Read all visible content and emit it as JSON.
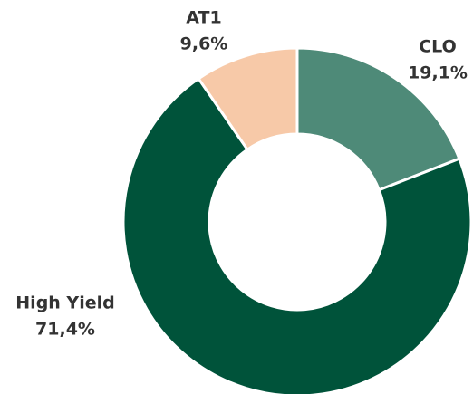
{
  "chart_data": {
    "type": "donut",
    "categories": [
      "CLO",
      "High Yield",
      "AT1"
    ],
    "values": [
      19.1,
      71.4,
      9.6
    ],
    "value_labels": [
      "19,1%",
      "71,4%",
      "9,6%"
    ],
    "colors": [
      "#4e8a78",
      "#00533a",
      "#f7c9a8"
    ]
  }
}
